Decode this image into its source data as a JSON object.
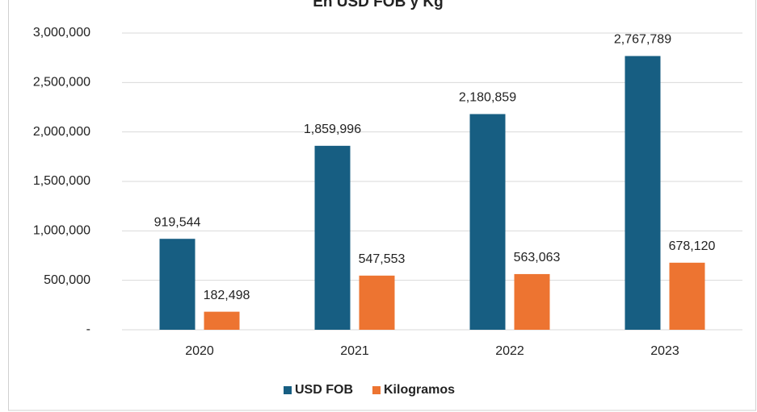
{
  "chart_data": {
    "type": "bar",
    "title": "En USD FOB y Kg",
    "categories": [
      "2020",
      "2021",
      "2022",
      "2023"
    ],
    "series": [
      {
        "name": "USD FOB",
        "color": "#175e82",
        "values": [
          919544,
          1859996,
          2180859,
          2767789
        ],
        "value_labels": [
          "919,544",
          "1,859,996",
          "2,180,859",
          "2,767,789"
        ]
      },
      {
        "name": "Kilogramos",
        "color": "#ed7431",
        "values": [
          182498,
          547553,
          563063,
          678120
        ],
        "value_labels": [
          "182,498",
          "547,553",
          "563,063",
          "678,120"
        ]
      }
    ],
    "ylim": [
      0,
      3000000
    ],
    "yticks": [
      {
        "value": 0,
        "label": "-"
      },
      {
        "value": 500000,
        "label": "500,000"
      },
      {
        "value": 1000000,
        "label": "1,000,000"
      },
      {
        "value": 1500000,
        "label": "1,500,000"
      },
      {
        "value": 2000000,
        "label": "2,000,000"
      },
      {
        "value": 2500000,
        "label": "2,500,000"
      },
      {
        "value": 3000000,
        "label": "3,000,000"
      }
    ],
    "grid": true,
    "legend": "bottom"
  }
}
